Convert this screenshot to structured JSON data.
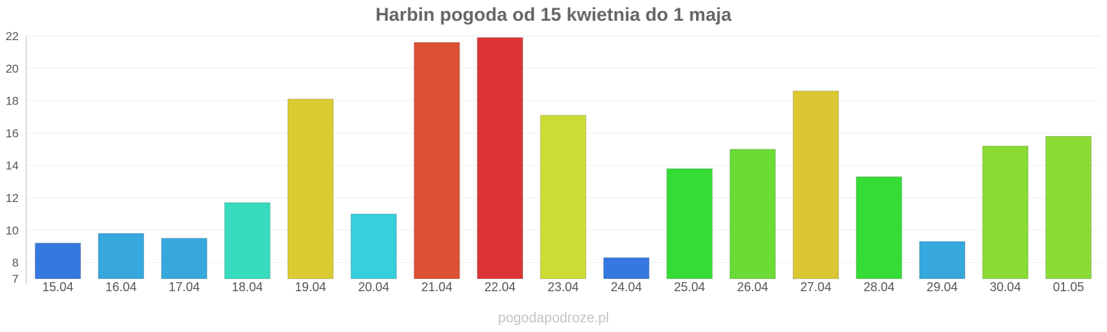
{
  "chart_data": {
    "type": "bar",
    "title": "Harbin pogoda od 15 kwietnia do 1 maja",
    "xlabel": "",
    "ylabel": "",
    "ylim": [
      7,
      22
    ],
    "yticks": [
      7,
      8,
      10,
      12,
      14,
      16,
      18,
      20,
      22
    ],
    "grid": true,
    "legend": "none",
    "categories": [
      "15.04",
      "16.04",
      "17.04",
      "18.04",
      "19.04",
      "20.04",
      "21.04",
      "22.04",
      "23.04",
      "24.04",
      "25.04",
      "26.04",
      "27.04",
      "28.04",
      "29.04",
      "30.04",
      "01.05"
    ],
    "values": [
      9.2,
      9.8,
      9.5,
      11.7,
      18.1,
      11.0,
      21.6,
      21.9,
      17.1,
      8.3,
      13.8,
      15.0,
      18.6,
      13.3,
      9.3,
      15.2,
      15.8
    ],
    "colors": [
      "#3578df",
      "#36a8de",
      "#36a8de",
      "#36dcbd",
      "#dbcb32",
      "#36cfdc",
      "#dc5034",
      "#dc3434",
      "#ccdc34",
      "#3578df",
      "#35dc35",
      "#6adc35",
      "#dbc732",
      "#35dc35",
      "#36a8de",
      "#8adc35",
      "#8adc35"
    ]
  },
  "watermark": "pogodapodroze.pl"
}
